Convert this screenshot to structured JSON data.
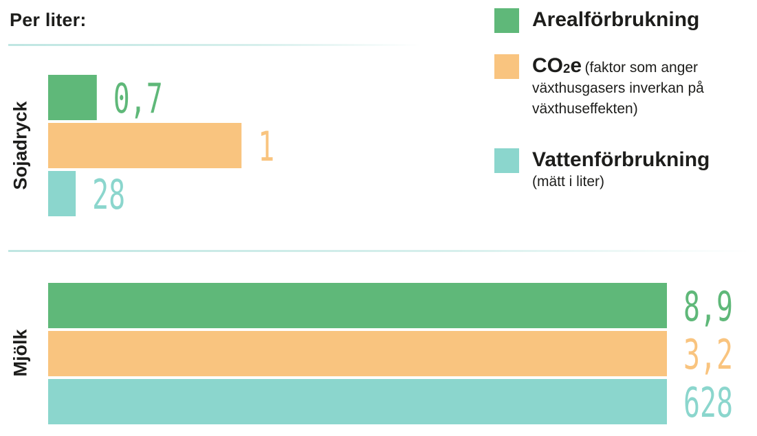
{
  "heading": "Per liter:",
  "colors": {
    "area": "#5fb879",
    "co2": "#f9c47f",
    "water": "#8bd6cd"
  },
  "legend": {
    "area": {
      "name": "Arealförbrukning"
    },
    "co2": {
      "name_main": "CO",
      "name_sub": "2",
      "name_tail": "e",
      "note_line1": "(faktor som anger",
      "note_line2": "växthusgasers inverkan på",
      "note_line3": "växthuseffekten)"
    },
    "water": {
      "name": "Vattenförbrukning",
      "note": "(mätt i liter)"
    }
  },
  "chart_data": [
    {
      "type": "bar",
      "category": "Sojadryck",
      "orientation": "horizontal",
      "series_order": [
        "Arealförbrukning",
        "CO2e",
        "Vattenförbrukning"
      ],
      "values": [
        0.7,
        1,
        28
      ],
      "labels": [
        "0,7",
        "1",
        "28"
      ]
    },
    {
      "type": "bar",
      "category": "Mjölk",
      "orientation": "horizontal",
      "series_order": [
        "Arealförbrukning",
        "CO2e",
        "Vattenförbrukning"
      ],
      "values": [
        8.9,
        3.2,
        628
      ],
      "labels": [
        "8,9",
        "3,2",
        "628"
      ]
    }
  ]
}
